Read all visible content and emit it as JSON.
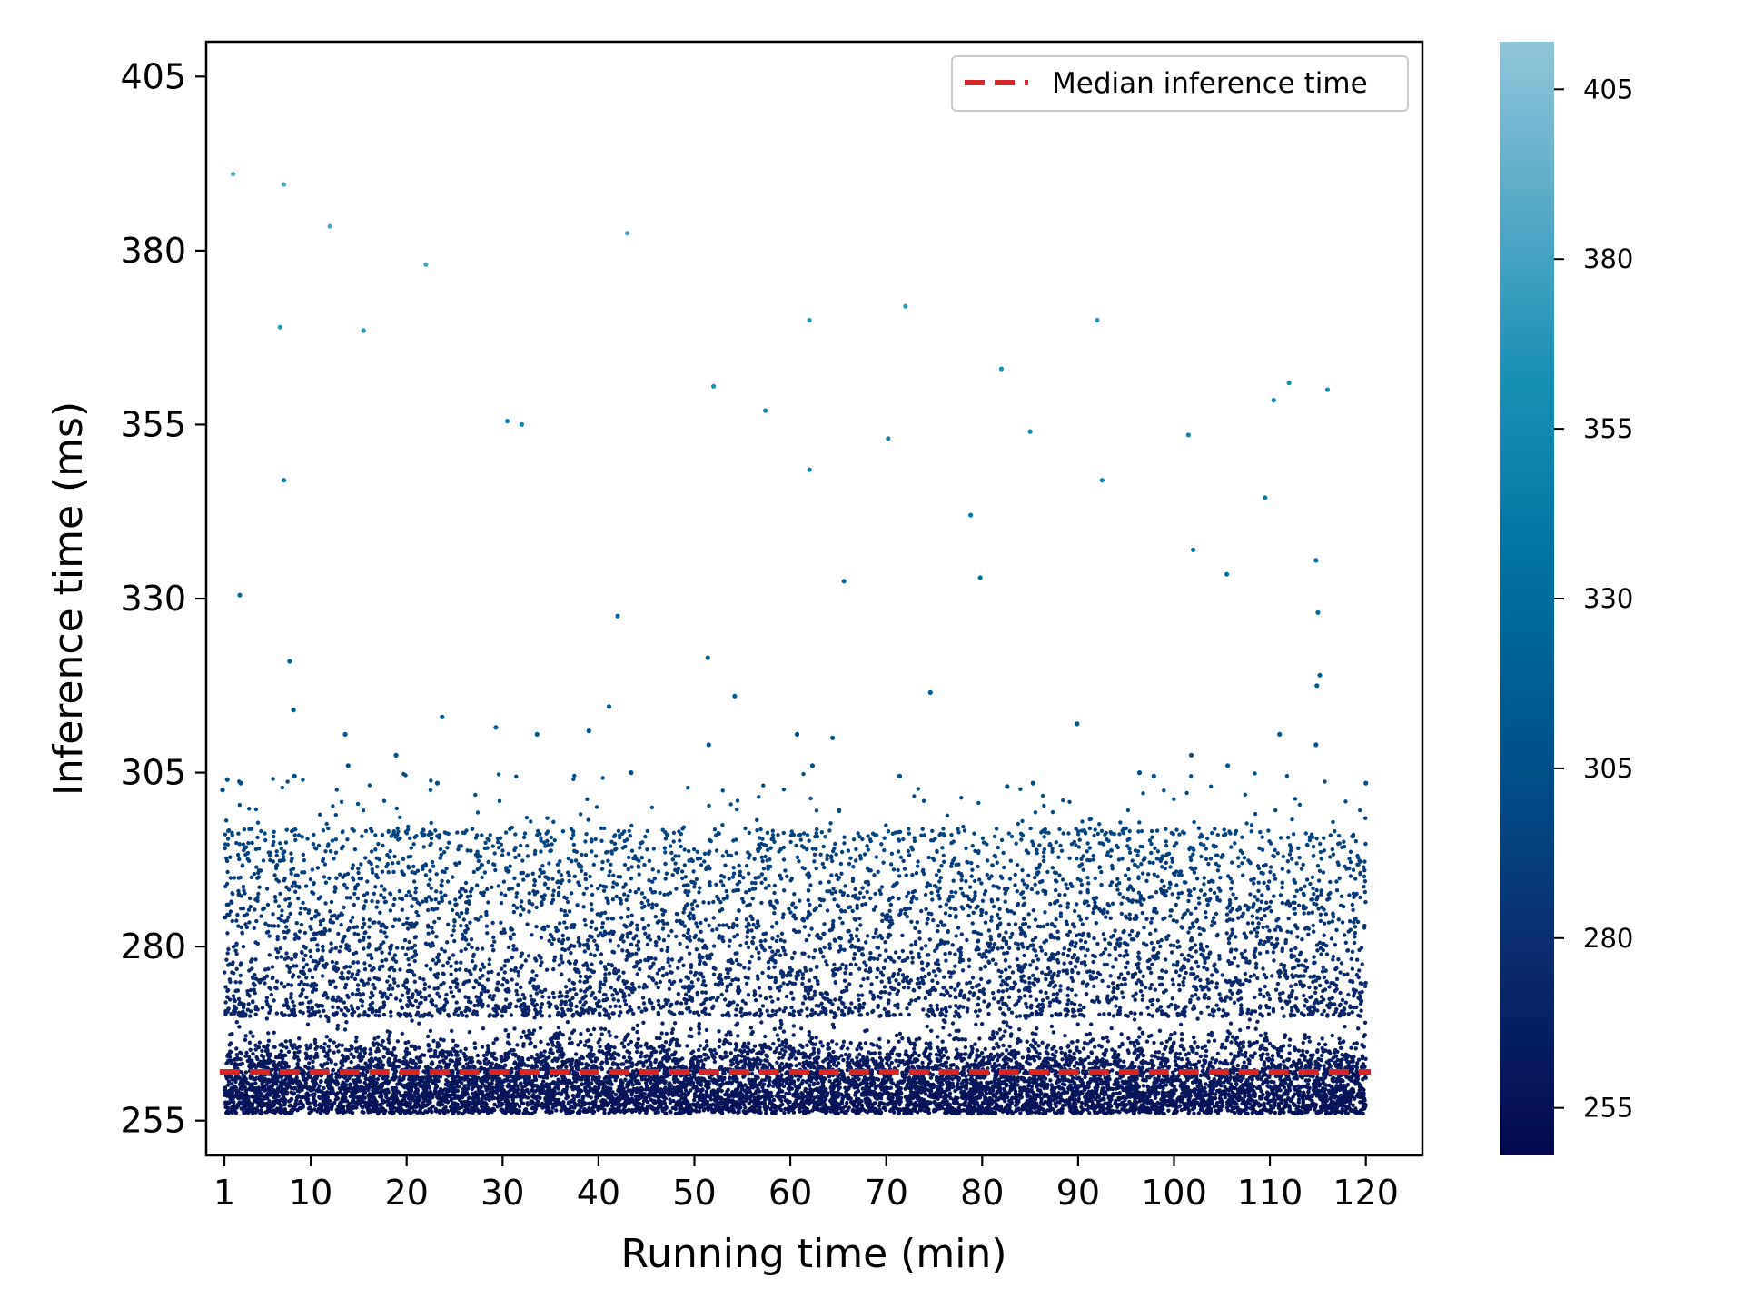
{
  "chart_data": {
    "type": "scatter",
    "title": "",
    "xlabel": "Running time (min)",
    "ylabel": "Inference time (ms)",
    "xlim": [
      -0.9,
      125.9
    ],
    "ylim": [
      250,
      410
    ],
    "x_ticks": [
      1,
      10,
      20,
      30,
      40,
      50,
      60,
      70,
      80,
      90,
      100,
      110,
      120
    ],
    "y_ticks": [
      255,
      280,
      305,
      330,
      355,
      380,
      405
    ],
    "grid": false,
    "legend": {
      "placement": "top-right",
      "entries": [
        "Median inference time"
      ]
    },
    "median_line": {
      "y": 262,
      "color": "#d62728",
      "style": "dashed",
      "label": "Median inference time"
    },
    "colorbar": {
      "range": [
        248,
        412
      ],
      "ticks": [
        255,
        280,
        305,
        330,
        355,
        380,
        405
      ],
      "colormap": "ocean (dark navy to light blue)",
      "colors": [
        "#05084e",
        "#0a2a6e",
        "#00508a",
        "#0070a0",
        "#1a8fb5",
        "#5aabc8",
        "#90c6d8"
      ]
    },
    "point_distribution": {
      "x_range": [
        1,
        120
      ],
      "dense_band": [
        256,
        270
      ],
      "sparse_band": [
        270,
        297
      ],
      "typical_max": 297
    },
    "outliers": [
      {
        "x": 1.9,
        "y": 391
      },
      {
        "x": 7.2,
        "y": 389.5
      },
      {
        "x": 12.0,
        "y": 383.5
      },
      {
        "x": 22.0,
        "y": 378
      },
      {
        "x": 43.0,
        "y": 382.5
      },
      {
        "x": 72.0,
        "y": 372
      },
      {
        "x": 6.8,
        "y": 369
      },
      {
        "x": 15.5,
        "y": 368.5
      },
      {
        "x": 62.0,
        "y": 370
      },
      {
        "x": 92.0,
        "y": 370
      },
      {
        "x": 52.0,
        "y": 360.5
      },
      {
        "x": 57.4,
        "y": 357
      },
      {
        "x": 82.0,
        "y": 363
      },
      {
        "x": 112.0,
        "y": 361
      },
      {
        "x": 116.0,
        "y": 360
      },
      {
        "x": 110.4,
        "y": 358.5
      },
      {
        "x": 30.5,
        "y": 355.5
      },
      {
        "x": 32.0,
        "y": 355
      },
      {
        "x": 70.2,
        "y": 353
      },
      {
        "x": 85.0,
        "y": 354
      },
      {
        "x": 101.5,
        "y": 353.5
      },
      {
        "x": 7.2,
        "y": 347
      },
      {
        "x": 62.0,
        "y": 348.5
      },
      {
        "x": 92.5,
        "y": 347
      },
      {
        "x": 109.5,
        "y": 344.5
      },
      {
        "x": 78.8,
        "y": 342
      },
      {
        "x": 102.0,
        "y": 337
      },
      {
        "x": 114.8,
        "y": 335.5
      },
      {
        "x": 2.6,
        "y": 330.5
      },
      {
        "x": 65.6,
        "y": 332.5
      },
      {
        "x": 79.8,
        "y": 333
      },
      {
        "x": 105.5,
        "y": 333.5
      },
      {
        "x": 42.0,
        "y": 327.5
      },
      {
        "x": 115.0,
        "y": 328
      },
      {
        "x": 7.8,
        "y": 321
      },
      {
        "x": 51.4,
        "y": 321.5
      },
      {
        "x": 115.2,
        "y": 319
      },
      {
        "x": 74.6,
        "y": 316.5
      },
      {
        "x": 54.2,
        "y": 316
      },
      {
        "x": 114.9,
        "y": 317.5
      },
      {
        "x": 8.2,
        "y": 314
      },
      {
        "x": 41.1,
        "y": 314.5
      },
      {
        "x": 23.7,
        "y": 313
      },
      {
        "x": 29.3,
        "y": 311.5
      },
      {
        "x": 89.9,
        "y": 312
      },
      {
        "x": 13.6,
        "y": 310.5
      },
      {
        "x": 33.6,
        "y": 310.5
      },
      {
        "x": 39.0,
        "y": 311
      },
      {
        "x": 60.7,
        "y": 310.5
      },
      {
        "x": 64.4,
        "y": 310
      },
      {
        "x": 111.0,
        "y": 310.5
      },
      {
        "x": 114.8,
        "y": 309
      },
      {
        "x": 51.5,
        "y": 309
      },
      {
        "x": 18.9,
        "y": 307.5
      },
      {
        "x": 101.8,
        "y": 307.5
      },
      {
        "x": 13.9,
        "y": 306
      },
      {
        "x": 43.4,
        "y": 305
      },
      {
        "x": 62.3,
        "y": 306
      },
      {
        "x": 105.6,
        "y": 306
      },
      {
        "x": 1.3,
        "y": 304
      },
      {
        "x": 8.3,
        "y": 304.5
      },
      {
        "x": 2.7,
        "y": 303.5
      },
      {
        "x": 23.2,
        "y": 303.5
      },
      {
        "x": 96.4,
        "y": 305
      },
      {
        "x": 97.9,
        "y": 304.5
      },
      {
        "x": 0.8,
        "y": 302.5
      },
      {
        "x": 120.0,
        "y": 303.5
      },
      {
        "x": 71.4,
        "y": 304.5
      },
      {
        "x": 82.6,
        "y": 303
      },
      {
        "x": 85.3,
        "y": 303.5
      }
    ]
  }
}
